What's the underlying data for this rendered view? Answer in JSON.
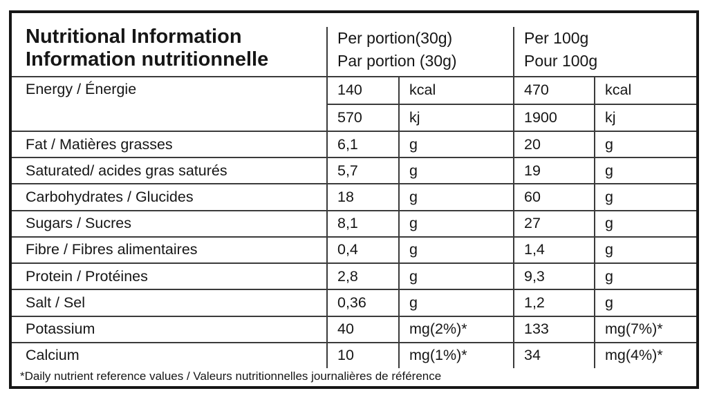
{
  "header": {
    "title_en": "Nutritional Information",
    "title_fr": "Information nutritionnelle",
    "col_portion": {
      "line1": "Per portion(30g)",
      "line2": "Par portion (30g)"
    },
    "col_per100": {
      "line1": "Per 100g",
      "line2": "Pour 100g"
    }
  },
  "energy": {
    "label": "Energy / Énergie",
    "rows": [
      {
        "portion_value": "140",
        "portion_unit": "kcal",
        "per100_value": "470",
        "per100_unit": "kcal"
      },
      {
        "portion_value": "570",
        "portion_unit": "kj",
        "per100_value": "1900",
        "per100_unit": "kj"
      }
    ]
  },
  "nutrients": [
    {
      "label": "Fat / Matières grasses",
      "portion_value": "6,1",
      "portion_unit": "g",
      "per100_value": "20",
      "per100_unit": "g"
    },
    {
      "label": "Saturated/ acides gras saturés",
      "portion_value": "5,7",
      "portion_unit": "g",
      "per100_value": "19",
      "per100_unit": "g"
    },
    {
      "label": "Carbohydrates / Glucides",
      "portion_value": "18",
      "portion_unit": "g",
      "per100_value": "60",
      "per100_unit": "g"
    },
    {
      "label": "Sugars / Sucres",
      "portion_value": "8,1",
      "portion_unit": "g",
      "per100_value": "27",
      "per100_unit": "g"
    },
    {
      "label": "Fibre / Fibres alimentaires",
      "portion_value": "0,4",
      "portion_unit": "g",
      "per100_value": "1,4",
      "per100_unit": "g"
    },
    {
      "label": "Protein / Protéines",
      "portion_value": "2,8",
      "portion_unit": "g",
      "per100_value": "9,3",
      "per100_unit": "g"
    },
    {
      "label": "Salt / Sel",
      "portion_value": "0,36",
      "portion_unit": "g",
      "per100_value": "1,2",
      "per100_unit": "g"
    },
    {
      "label": "Potassium",
      "portion_value": "40",
      "portion_unit": "mg(2%)*",
      "per100_value": "133",
      "per100_unit": "mg(7%)*"
    },
    {
      "label": "Calcium",
      "portion_value": "10",
      "portion_unit": "mg(1%)*",
      "per100_value": "34",
      "per100_unit": "mg(4%)*"
    }
  ],
  "footnote": "*Daily nutrient reference values / Valeurs nutritionnelles journalières de référence",
  "colors": {
    "border": "#161616",
    "grid_line": "#3a3a3a",
    "text": "#161616",
    "background": "#ffffff"
  }
}
